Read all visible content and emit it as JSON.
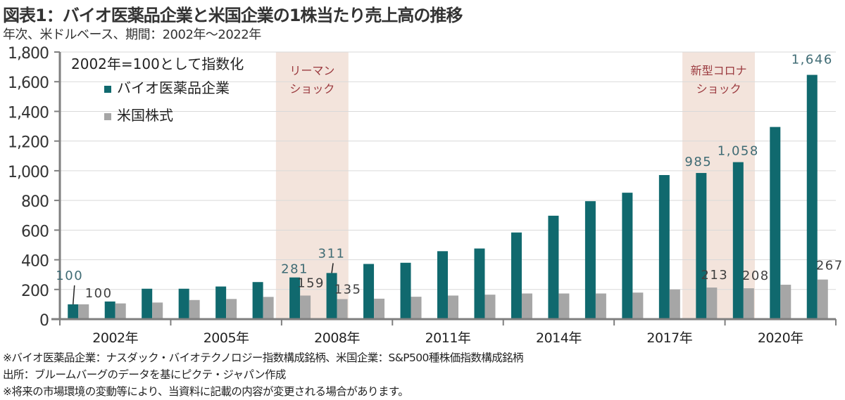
{
  "title": "図表1：バイオ医薬品企業と米国企業の1株当たり売上高の推移",
  "subtitle": "年次、米ドルベース、期間：2002年～2022年",
  "notes": [
    "※バイオ医薬品企業：ナスダック・バイオテクノロジー指数構成銘柄、米国企業：S&P500種株価指数構成銘柄",
    "出所：ブルームバーグのデータを基にピクテ・ジャパン作成",
    "※将来の市場環境の変動等により、当資料に記載の内容が変更される場合があります。"
  ],
  "colors": {
    "bio": "#10696e",
    "us": "#a6a6a6",
    "shade": "#f3e4dc",
    "shade_text": "#9b3a3f",
    "bio_label": "#3f6b74",
    "us_label": "#404040",
    "grid": "#d9d9d9",
    "axis": "#7f7f7f"
  },
  "chart_data": {
    "type": "bar",
    "title": "図表1：バイオ医薬品企業と米国企業の1株当たり売上高の推移",
    "annotation": "2002年=100として指数化",
    "xlabel": "",
    "ylabel": "",
    "ylim": [
      0,
      1800
    ],
    "yticks": [
      0,
      200,
      400,
      600,
      800,
      1000,
      1200,
      1400,
      1600,
      1800
    ],
    "ytick_labels": [
      "0",
      "200",
      "400",
      "600",
      "800",
      "1,000",
      "1,200",
      "1,400",
      "1,600",
      "1,800"
    ],
    "grid": true,
    "legend_position": "top-left",
    "categories": [
      "2002",
      "2003",
      "2004",
      "2005",
      "2006",
      "2007",
      "2008",
      "2009",
      "2010",
      "2011",
      "2012",
      "2013",
      "2014",
      "2015",
      "2016",
      "2017",
      "2018",
      "2019",
      "2020",
      "2021",
      "2022"
    ],
    "xtick_labels": [
      {
        "category": "2002",
        "label": "2002年"
      },
      {
        "category": "2005",
        "label": "2005年"
      },
      {
        "category": "2008",
        "label": "2008年"
      },
      {
        "category": "2011",
        "label": "2011年"
      },
      {
        "category": "2014",
        "label": "2014年"
      },
      {
        "category": "2017",
        "label": "2017年"
      },
      {
        "category": "2020",
        "label": "2020年"
      }
    ],
    "series": [
      {
        "name": "バイオ医薬品企業",
        "values": [
          100,
          119,
          205,
          205,
          220,
          250,
          281,
          311,
          372,
          380,
          458,
          476,
          584,
          697,
          795,
          852,
          971,
          985,
          1058,
          1295,
          1646
        ]
      },
      {
        "name": "米国株式",
        "values": [
          100,
          106,
          112,
          129,
          136,
          150,
          159,
          135,
          138,
          151,
          159,
          165,
          173,
          173,
          173,
          179,
          200,
          213,
          208,
          232,
          267
        ]
      }
    ],
    "data_labels": [
      {
        "series": 0,
        "category": "2002",
        "text": "100"
      },
      {
        "series": 1,
        "category": "2002",
        "text": "100"
      },
      {
        "series": 0,
        "category": "2008",
        "text": "281"
      },
      {
        "series": 1,
        "category": "2008",
        "text": "159"
      },
      {
        "series": 0,
        "category": "2009",
        "text": "311"
      },
      {
        "series": 1,
        "category": "2009",
        "text": "135"
      },
      {
        "series": 0,
        "category": "2019",
        "text": "985"
      },
      {
        "series": 1,
        "category": "2019",
        "text": "213"
      },
      {
        "series": 0,
        "category": "2020",
        "text": "1,058"
      },
      {
        "series": 1,
        "category": "2020",
        "text": "208"
      },
      {
        "series": 0,
        "category": "2022",
        "text": "1,646"
      },
      {
        "series": 1,
        "category": "2022",
        "text": "267"
      }
    ],
    "shaded_periods": [
      {
        "from": "2008",
        "to": "2009",
        "label_lines": [
          "リーマン",
          "ショック"
        ]
      },
      {
        "from": "2019",
        "to": "2020",
        "label_lines": [
          "新型コロナ",
          "ショック"
        ]
      }
    ]
  }
}
